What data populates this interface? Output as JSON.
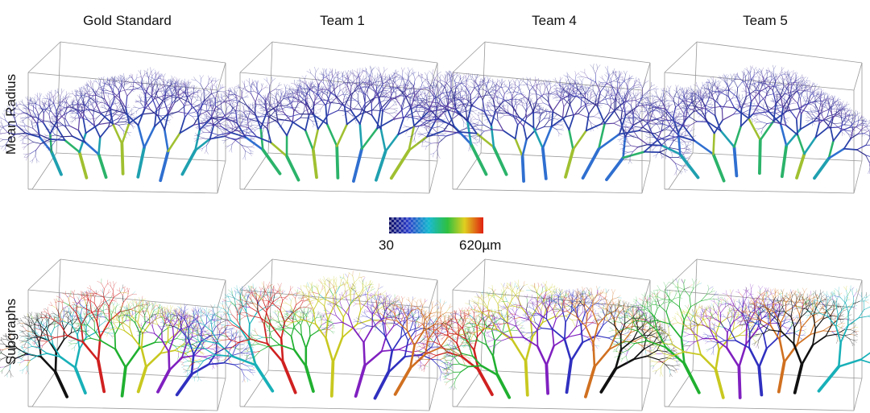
{
  "columns": [
    "Gold Standard",
    "Team 1",
    "Team 4",
    "Team 5"
  ],
  "rows": [
    "Mean Radius",
    "Subgraphs"
  ],
  "colorbar": {
    "min": "30",
    "max": "620µm"
  }
}
